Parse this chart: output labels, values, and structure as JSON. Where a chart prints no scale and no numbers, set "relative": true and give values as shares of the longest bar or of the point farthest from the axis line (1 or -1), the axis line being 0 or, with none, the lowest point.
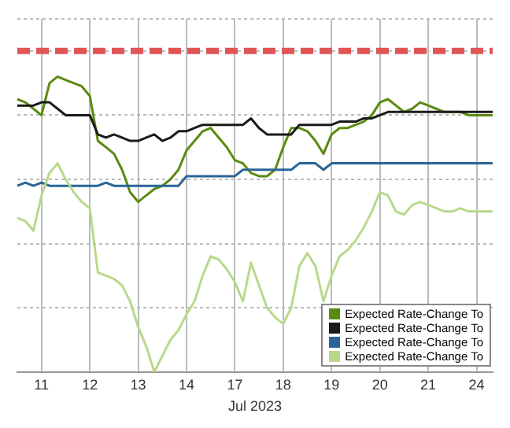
{
  "chart_data": {
    "type": "line",
    "relative": true,
    "xlabel": "Jul 2023",
    "grid": true,
    "legend": "bottom right",
    "marker": "none",
    "categories": [
      null,
      null,
      null,
      "11",
      null,
      null,
      null,
      null,
      null,
      "12",
      null,
      null,
      null,
      null,
      null,
      "13",
      null,
      null,
      null,
      null,
      null,
      "14",
      null,
      null,
      null,
      null,
      null,
      "17",
      null,
      null,
      null,
      null,
      null,
      "18",
      null,
      null,
      null,
      null,
      null,
      "19",
      null,
      null,
      null,
      null,
      null,
      "20",
      null,
      null,
      null,
      null,
      null,
      "21",
      null,
      null,
      null,
      null,
      null,
      "24",
      null,
      null
    ],
    "series": [
      {
        "color": "#e05555",
        "line_style": "dashed",
        "values": [
          1,
          1,
          1,
          1,
          1,
          1,
          1,
          1,
          1,
          1,
          1,
          1,
          1,
          1,
          1,
          1,
          1,
          1,
          1,
          1,
          1,
          1,
          1,
          1,
          1,
          1,
          1,
          1,
          1,
          1,
          1,
          1,
          1,
          1,
          1,
          1,
          1,
          1,
          1,
          1,
          1,
          1,
          1,
          1,
          1,
          1,
          1,
          1,
          1,
          1,
          1,
          1,
          1,
          1,
          1,
          1,
          1,
          1,
          1,
          1
        ]
      },
      {
        "name": "Expected Rate-Change To",
        "color": "#b8d98a",
        "values": [
          0.48,
          0.47,
          0.44,
          0.55,
          0.62,
          0.65,
          0.6,
          0.56,
          0.53,
          0.51,
          0.31,
          0.3,
          0.29,
          0.27,
          0.22,
          0.14,
          0.08,
          0,
          0.05,
          0.1,
          0.13,
          0.18,
          0.22,
          0.3,
          0.36,
          0.35,
          0.32,
          0.28,
          0.22,
          0.34,
          0.27,
          0.2,
          0.17,
          0.15,
          0.2,
          0.33,
          0.37,
          0.33,
          0.22,
          0.3,
          0.36,
          0.38,
          0.41,
          0.45,
          0.5,
          0.56,
          0.55,
          0.5,
          0.49,
          0.52,
          0.53,
          0.52,
          0.51,
          0.5,
          0.5,
          0.51,
          0.5,
          0.5,
          0.5,
          0.5
        ]
      },
      {
        "name": "Expected Rate-Change To",
        "color": "#2a6496",
        "values": [
          0.58,
          0.59,
          0.58,
          0.59,
          0.58,
          0.58,
          0.58,
          0.58,
          0.58,
          0.58,
          0.58,
          0.59,
          0.58,
          0.58,
          0.58,
          0.58,
          0.58,
          0.58,
          0.58,
          0.58,
          0.58,
          0.61,
          0.61,
          0.61,
          0.61,
          0.61,
          0.61,
          0.61,
          0.63,
          0.63,
          0.63,
          0.63,
          0.63,
          0.63,
          0.63,
          0.65,
          0.65,
          0.65,
          0.63,
          0.65,
          0.65,
          0.65,
          0.65,
          0.65,
          0.65,
          0.65,
          0.65,
          0.65,
          0.65,
          0.65,
          0.65,
          0.65,
          0.65,
          0.65,
          0.65,
          0.65,
          0.65,
          0.65,
          0.65,
          0.65
        ]
      },
      {
        "name": "Expected Rate-Change To",
        "color": "#1a1a1a",
        "values": [
          0.83,
          0.83,
          0.83,
          0.84,
          0.84,
          0.82,
          0.8,
          0.8,
          0.8,
          0.8,
          0.74,
          0.73,
          0.74,
          0.73,
          0.72,
          0.72,
          0.73,
          0.74,
          0.72,
          0.73,
          0.75,
          0.75,
          0.76,
          0.77,
          0.77,
          0.77,
          0.77,
          0.77,
          0.77,
          0.79,
          0.76,
          0.74,
          0.74,
          0.74,
          0.74,
          0.77,
          0.77,
          0.77,
          0.77,
          0.77,
          0.78,
          0.78,
          0.78,
          0.79,
          0.79,
          0.8,
          0.81,
          0.81,
          0.81,
          0.81,
          0.81,
          0.81,
          0.81,
          0.81,
          0.81,
          0.81,
          0.81,
          0.81,
          0.81,
          0.81
        ]
      },
      {
        "name": "Expected Rate-Change To",
        "color": "#5a8a10",
        "values": [
          0.85,
          0.84,
          0.82,
          0.8,
          0.9,
          0.92,
          0.91,
          0.9,
          0.89,
          0.86,
          0.72,
          0.7,
          0.68,
          0.63,
          0.56,
          0.53,
          0.55,
          0.57,
          0.58,
          0.6,
          0.63,
          0.69,
          0.72,
          0.75,
          0.76,
          0.73,
          0.7,
          0.66,
          0.65,
          0.62,
          0.61,
          0.61,
          0.63,
          0.7,
          0.76,
          0.76,
          0.75,
          0.72,
          0.68,
          0.74,
          0.76,
          0.76,
          0.77,
          0.78,
          0.8,
          0.84,
          0.85,
          0.83,
          0.81,
          0.82,
          0.84,
          0.83,
          0.82,
          0.81,
          0.81,
          0.81,
          0.8,
          0.8,
          0.8,
          0.8
        ]
      }
    ]
  }
}
